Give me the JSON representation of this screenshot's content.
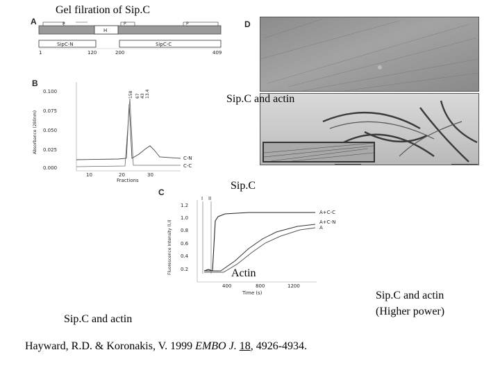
{
  "captions": {
    "gel_filtration": "Gel filration of Sip.C",
    "sipc_actin_top": "Sip.C and actin",
    "sipc_middle": "Sip.C",
    "actin": "Actin",
    "sipc_actin_bottom": "Sip.C and actin",
    "higher_power_1": "Sip.C and actin",
    "higher_power_2": "(Higher power)"
  },
  "citation": {
    "authors": "Hayward, R.D. & Koronakis, V. 1999 ",
    "journal": "EMBO J.",
    "volume": "18",
    "pages": ", 4926-4934."
  },
  "panelA": {
    "letter": "A",
    "segments": [
      "P",
      "H",
      "P",
      "P"
    ],
    "boxes": [
      "SipC-N",
      "SipC-C"
    ],
    "ticks": [
      "1",
      "120",
      "200",
      "409"
    ]
  },
  "panelB": {
    "letter": "B",
    "ylabel": "Absorbance (280nm)",
    "xlabel": "Fractions",
    "yticks": [
      "0.100",
      "0.075",
      "0.050",
      "0.025",
      "0.000"
    ],
    "xticks": [
      "10",
      "20",
      "30"
    ],
    "markers": [
      "158",
      "67",
      "43",
      "13.4"
    ],
    "series_labels": [
      "C-N",
      "C-C"
    ]
  },
  "panelC": {
    "letter": "C",
    "ylabel": "Fluorescence Intensity (I,I)",
    "xlabel": "Time (s)",
    "yticks": [
      "1.2",
      "1.0",
      "0.8",
      "0.6",
      "0.4",
      "0.2"
    ],
    "xticks": [
      "400",
      "800",
      "1200"
    ],
    "top_markers": [
      "I",
      "II"
    ],
    "series_labels": [
      "A+C-C",
      "A+C-N",
      "A"
    ]
  },
  "panelD": {
    "letter": "D"
  }
}
